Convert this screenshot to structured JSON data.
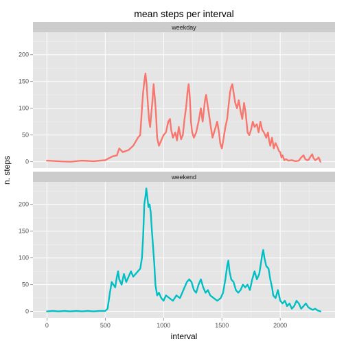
{
  "chart_data": {
    "type": "line",
    "title": "mean steps per interval",
    "xlabel": "interval",
    "ylabel": "n. steps",
    "xlim": [
      -120,
      2470
    ],
    "ylim": [
      -12,
      242
    ],
    "x_ticks": [
      0,
      500,
      1000,
      1500,
      2000
    ],
    "y_ticks": [
      0,
      50,
      100,
      150,
      200
    ],
    "grid": true,
    "legend": "none",
    "panels": [
      {
        "strip": "weekday",
        "color": "#f8766d",
        "points": [
          [
            0,
            2
          ],
          [
            100,
            1
          ],
          [
            200,
            0
          ],
          [
            300,
            2
          ],
          [
            400,
            1
          ],
          [
            500,
            3
          ],
          [
            560,
            10
          ],
          [
            600,
            12
          ],
          [
            620,
            25
          ],
          [
            650,
            18
          ],
          [
            700,
            22
          ],
          [
            740,
            30
          ],
          [
            780,
            45
          ],
          [
            800,
            50
          ],
          [
            815,
            100
          ],
          [
            825,
            130
          ],
          [
            835,
            150
          ],
          [
            845,
            165
          ],
          [
            855,
            145
          ],
          [
            865,
            110
          ],
          [
            875,
            80
          ],
          [
            885,
            65
          ],
          [
            895,
            90
          ],
          [
            905,
            115
          ],
          [
            915,
            145
          ],
          [
            925,
            120
          ],
          [
            935,
            90
          ],
          [
            945,
            45
          ],
          [
            960,
            30
          ],
          [
            980,
            40
          ],
          [
            1000,
            50
          ],
          [
            1020,
            55
          ],
          [
            1040,
            75
          ],
          [
            1055,
            80
          ],
          [
            1065,
            60
          ],
          [
            1080,
            45
          ],
          [
            1100,
            55
          ],
          [
            1115,
            40
          ],
          [
            1130,
            65
          ],
          [
            1150,
            42
          ],
          [
            1165,
            50
          ],
          [
            1180,
            80
          ],
          [
            1195,
            105
          ],
          [
            1205,
            130
          ],
          [
            1215,
            145
          ],
          [
            1225,
            120
          ],
          [
            1235,
            75
          ],
          [
            1245,
            55
          ],
          [
            1260,
            45
          ],
          [
            1280,
            55
          ],
          [
            1300,
            75
          ],
          [
            1320,
            100
          ],
          [
            1335,
            75
          ],
          [
            1345,
            95
          ],
          [
            1355,
            115
          ],
          [
            1365,
            125
          ],
          [
            1375,
            110
          ],
          [
            1385,
            95
          ],
          [
            1395,
            80
          ],
          [
            1405,
            65
          ],
          [
            1420,
            45
          ],
          [
            1440,
            60
          ],
          [
            1460,
            75
          ],
          [
            1475,
            55
          ],
          [
            1485,
            35
          ],
          [
            1500,
            25
          ],
          [
            1515,
            45
          ],
          [
            1530,
            65
          ],
          [
            1545,
            80
          ],
          [
            1560,
            110
          ],
          [
            1570,
            130
          ],
          [
            1580,
            140
          ],
          [
            1590,
            145
          ],
          [
            1600,
            130
          ],
          [
            1615,
            110
          ],
          [
            1630,
            100
          ],
          [
            1645,
            115
          ],
          [
            1660,
            95
          ],
          [
            1675,
            80
          ],
          [
            1690,
            110
          ],
          [
            1705,
            90
          ],
          [
            1720,
            55
          ],
          [
            1735,
            50
          ],
          [
            1750,
            60
          ],
          [
            1765,
            75
          ],
          [
            1780,
            65
          ],
          [
            1800,
            70
          ],
          [
            1815,
            55
          ],
          [
            1830,
            75
          ],
          [
            1845,
            60
          ],
          [
            1860,
            55
          ],
          [
            1880,
            45
          ],
          [
            1895,
            55
          ],
          [
            1905,
            40
          ],
          [
            1915,
            30
          ],
          [
            1930,
            45
          ],
          [
            1945,
            25
          ],
          [
            1960,
            35
          ],
          [
            1975,
            28
          ],
          [
            1990,
            20
          ],
          [
            2000,
            18
          ],
          [
            2010,
            8
          ],
          [
            2020,
            12
          ],
          [
            2035,
            3
          ],
          [
            2050,
            5
          ],
          [
            2070,
            2
          ],
          [
            2100,
            3
          ],
          [
            2130,
            1
          ],
          [
            2160,
            2
          ],
          [
            2180,
            8
          ],
          [
            2200,
            12
          ],
          [
            2215,
            5
          ],
          [
            2230,
            3
          ],
          [
            2245,
            4
          ],
          [
            2260,
            10
          ],
          [
            2275,
            14
          ],
          [
            2285,
            7
          ],
          [
            2300,
            3
          ],
          [
            2315,
            5
          ],
          [
            2330,
            8
          ],
          [
            2345,
            0
          ]
        ]
      },
      {
        "strip": "weekend",
        "color": "#00bfc4",
        "points": [
          [
            0,
            0
          ],
          [
            50,
            1
          ],
          [
            100,
            0
          ],
          [
            150,
            1
          ],
          [
            200,
            0
          ],
          [
            250,
            1
          ],
          [
            300,
            0
          ],
          [
            350,
            1
          ],
          [
            400,
            0
          ],
          [
            450,
            1
          ],
          [
            500,
            1
          ],
          [
            520,
            5
          ],
          [
            540,
            35
          ],
          [
            555,
            55
          ],
          [
            570,
            50
          ],
          [
            585,
            45
          ],
          [
            600,
            65
          ],
          [
            610,
            75
          ],
          [
            620,
            60
          ],
          [
            640,
            50
          ],
          [
            660,
            70
          ],
          [
            680,
            55
          ],
          [
            700,
            65
          ],
          [
            720,
            75
          ],
          [
            740,
            65
          ],
          [
            760,
            70
          ],
          [
            780,
            75
          ],
          [
            800,
            80
          ],
          [
            815,
            100
          ],
          [
            825,
            140
          ],
          [
            835,
            200
          ],
          [
            845,
            215
          ],
          [
            852,
            230
          ],
          [
            860,
            215
          ],
          [
            870,
            195
          ],
          [
            880,
            200
          ],
          [
            890,
            185
          ],
          [
            900,
            150
          ],
          [
            910,
            120
          ],
          [
            920,
            90
          ],
          [
            930,
            50
          ],
          [
            945,
            30
          ],
          [
            960,
            35
          ],
          [
            980,
            25
          ],
          [
            1000,
            20
          ],
          [
            1020,
            30
          ],
          [
            1050,
            25
          ],
          [
            1080,
            20
          ],
          [
            1110,
            30
          ],
          [
            1140,
            25
          ],
          [
            1160,
            35
          ],
          [
            1180,
            45
          ],
          [
            1200,
            55
          ],
          [
            1220,
            60
          ],
          [
            1240,
            55
          ],
          [
            1260,
            40
          ],
          [
            1280,
            35
          ],
          [
            1300,
            50
          ],
          [
            1320,
            60
          ],
          [
            1340,
            45
          ],
          [
            1360,
            35
          ],
          [
            1380,
            40
          ],
          [
            1400,
            30
          ],
          [
            1430,
            25
          ],
          [
            1460,
            20
          ],
          [
            1490,
            25
          ],
          [
            1510,
            35
          ],
          [
            1530,
            60
          ],
          [
            1545,
            85
          ],
          [
            1555,
            95
          ],
          [
            1565,
            75
          ],
          [
            1580,
            60
          ],
          [
            1600,
            55
          ],
          [
            1620,
            40
          ],
          [
            1640,
            35
          ],
          [
            1660,
            40
          ],
          [
            1680,
            50
          ],
          [
            1700,
            45
          ],
          [
            1720,
            50
          ],
          [
            1740,
            40
          ],
          [
            1760,
            60
          ],
          [
            1780,
            75
          ],
          [
            1800,
            60
          ],
          [
            1820,
            70
          ],
          [
            1835,
            90
          ],
          [
            1845,
            105
          ],
          [
            1855,
            115
          ],
          [
            1865,
            100
          ],
          [
            1880,
            85
          ],
          [
            1900,
            80
          ],
          [
            1915,
            60
          ],
          [
            1930,
            45
          ],
          [
            1940,
            30
          ],
          [
            1960,
            25
          ],
          [
            1980,
            40
          ],
          [
            2000,
            20
          ],
          [
            2020,
            15
          ],
          [
            2040,
            20
          ],
          [
            2060,
            10
          ],
          [
            2080,
            15
          ],
          [
            2100,
            5
          ],
          [
            2120,
            10
          ],
          [
            2140,
            20
          ],
          [
            2160,
            15
          ],
          [
            2180,
            5
          ],
          [
            2200,
            10
          ],
          [
            2220,
            15
          ],
          [
            2240,
            8
          ],
          [
            2260,
            5
          ],
          [
            2280,
            3
          ],
          [
            2300,
            5
          ],
          [
            2320,
            2
          ],
          [
            2345,
            0
          ]
        ]
      }
    ]
  }
}
